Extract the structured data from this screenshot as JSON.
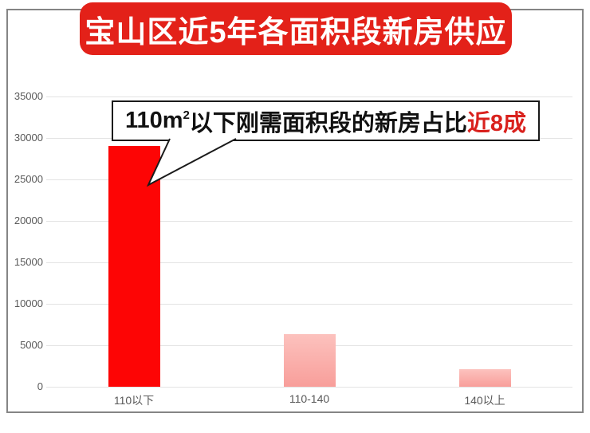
{
  "title": "宝山区近5年各面积段新房供应",
  "callout": {
    "part1": "110m",
    "sup": "2",
    "part2": "以下刚需面积段的新房占比",
    "highlight": "近8成"
  },
  "chart_data": {
    "type": "bar",
    "title": "宝山区近5年各面积段新房供应",
    "categories": [
      "110以下",
      "110-140",
      "140以上"
    ],
    "values": [
      29000,
      6300,
      2100
    ],
    "xlabel": "",
    "ylabel": "",
    "ylim": [
      0,
      35000
    ],
    "yticks": [
      0,
      5000,
      10000,
      15000,
      20000,
      25000,
      30000,
      35000
    ],
    "grid": true,
    "legend": false,
    "annotation": "110m²以下刚需面积段的新房占比近8成",
    "bar_styles": [
      "solid-red",
      "pink-gradient",
      "pink-gradient"
    ]
  },
  "colors": {
    "banner_bg": "#e32119",
    "banner_text": "#ffffff",
    "bar_red": "#fd0505",
    "bar_pink_top": "#fcc2be",
    "bar_pink_bottom": "#f89e9a",
    "gridline": "#e3e3e3",
    "axis_label": "#595959",
    "frame_border": "#858585",
    "callout_border": "#1a1a1a",
    "callout_text": "#111111",
    "callout_highlight": "#d9211d"
  }
}
